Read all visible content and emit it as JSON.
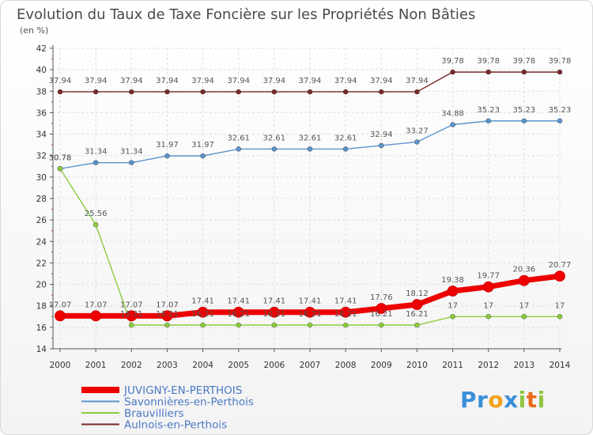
{
  "logo": {
    "text": "Proxiti",
    "letters": [
      {
        "ch": "P",
        "color": "#3a8fd9"
      },
      {
        "ch": "r",
        "color": "#3a8fd9"
      },
      {
        "ch": "o",
        "color": "#f0a21b"
      },
      {
        "ch": "x",
        "color": "#3a8fd9"
      },
      {
        "ch": "i",
        "color": "#8cc63e"
      },
      {
        "ch": "t",
        "color": "#e86a1a"
      },
      {
        "ch": "i",
        "color": "#8cc63e"
      }
    ]
  },
  "chart_data": {
    "type": "line",
    "title": "Evolution du Taux de Taxe Foncière sur les Propriétés Non Bâties",
    "subtitle": "(en %)",
    "xlabel": "",
    "ylabel": "",
    "categories": [
      "2000",
      "2001",
      "2002",
      "2003",
      "2004",
      "2005",
      "2006",
      "2007",
      "2008",
      "2009",
      "2010",
      "2011",
      "2012",
      "2013",
      "2014"
    ],
    "ylim": [
      14,
      42
    ],
    "yticks": [
      14,
      16,
      18,
      20,
      22,
      24,
      26,
      28,
      30,
      32,
      34,
      36,
      38,
      40,
      42
    ],
    "grid": true,
    "legend_position": "bottom-left",
    "series": [
      {
        "name": "JUVIGNY-EN-PERTHOIS",
        "color": "#ee0000",
        "emphasis": true,
        "values": [
          17.07,
          17.07,
          17.07,
          17.07,
          17.41,
          17.41,
          17.41,
          17.41,
          17.41,
          17.76,
          18.12,
          19.38,
          19.77,
          20.36,
          20.77
        ],
        "labels": [
          "17.07",
          "17.07",
          "17.07",
          "17.07",
          "17.41",
          "17.41",
          "17.41",
          "17.41",
          "17.41",
          "17.76",
          "18.12",
          "19.38",
          "19.77",
          "20.36",
          "20.77"
        ]
      },
      {
        "name": "Savonnières-en-Perthois",
        "color": "#5a94cc",
        "emphasis": false,
        "values": [
          30.78,
          31.34,
          31.34,
          31.97,
          31.97,
          32.61,
          32.61,
          32.61,
          32.61,
          32.94,
          33.27,
          34.88,
          35.23,
          35.23,
          35.23
        ],
        "labels": [
          "30.78",
          "31.34",
          "31.34",
          "31.97",
          "31.97",
          "32.61",
          "32.61",
          "32.61",
          "32.61",
          "32.94",
          "33.27",
          "34.88",
          "35.23",
          "35.23",
          "35.23"
        ]
      },
      {
        "name": "Brauvilliers",
        "color": "#8ccc3e",
        "emphasis": false,
        "values": [
          30.78,
          25.56,
          16.21,
          16.21,
          16.21,
          16.21,
          16.21,
          16.21,
          16.21,
          16.21,
          16.21,
          17,
          17,
          17,
          17
        ],
        "labels": [
          "30.78",
          "25.56",
          "16.21",
          "16.21",
          "16.21",
          "16.21",
          "16.21",
          "16.21",
          "16.21",
          "16.21",
          "16.21",
          "17",
          "17",
          "17",
          "17"
        ]
      },
      {
        "name": "Aulnois-en-Perthois",
        "color": "#7a2a2a",
        "emphasis": false,
        "values": [
          37.94,
          37.94,
          37.94,
          37.94,
          37.94,
          37.94,
          37.94,
          37.94,
          37.94,
          37.94,
          37.94,
          39.78,
          39.78,
          39.78,
          39.78
        ],
        "labels": [
          "37.94",
          "37.94",
          "37.94",
          "37.94",
          "37.94",
          "37.94",
          "37.94",
          "37.94",
          "37.94",
          "37.94",
          "37.94",
          "39.78",
          "39.78",
          "39.78",
          "39.78"
        ]
      }
    ]
  }
}
